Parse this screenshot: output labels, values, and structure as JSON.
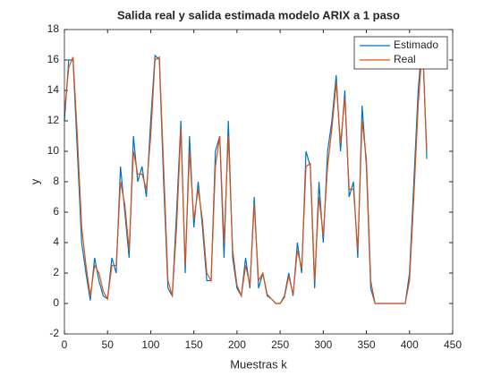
{
  "chart_data": {
    "type": "line",
    "title": "Salida real y salida estimada modelo ARIX a 1 paso",
    "x_label": "Muestras k",
    "y_label": "y",
    "x": [
      0,
      5,
      10,
      15,
      20,
      25,
      30,
      35,
      40,
      45,
      50,
      55,
      60,
      65,
      70,
      75,
      80,
      85,
      90,
      95,
      100,
      105,
      110,
      115,
      120,
      125,
      130,
      135,
      140,
      145,
      150,
      155,
      160,
      165,
      170,
      175,
      180,
      185,
      190,
      195,
      200,
      205,
      210,
      215,
      220,
      225,
      230,
      235,
      240,
      245,
      250,
      255,
      260,
      265,
      270,
      275,
      280,
      285,
      290,
      295,
      300,
      305,
      310,
      315,
      320,
      325,
      330,
      335,
      340,
      345,
      350,
      355,
      360,
      365,
      370,
      375,
      380,
      385,
      390,
      395,
      400,
      405,
      410,
      415,
      420
    ],
    "series": [
      {
        "name": "Estimado",
        "color": "#0072bd",
        "values": [
          12,
          16,
          16,
          10,
          4,
          2,
          0.2,
          3,
          1.5,
          0.5,
          0.3,
          3,
          2,
          9,
          6,
          3,
          11,
          8,
          9,
          7,
          12,
          16.3,
          16,
          8,
          1,
          0.5,
          6,
          12,
          2,
          11,
          5,
          8,
          5,
          1.5,
          1.5,
          10,
          11,
          3,
          12,
          3,
          1,
          0.5,
          3,
          1,
          7,
          1,
          2,
          0.5,
          0.3,
          0,
          0,
          0.5,
          2,
          0.5,
          4,
          2,
          10,
          9,
          1,
          8,
          4,
          10,
          12,
          15,
          10,
          14,
          7,
          8,
          3,
          13,
          9,
          1,
          0,
          0,
          0,
          0,
          0,
          0,
          0,
          0,
          2,
          8,
          14,
          17.5,
          9.5
        ]
      },
      {
        "name": "Real",
        "color": "#d95319",
        "values": [
          12.5,
          15.5,
          16.2,
          11,
          5,
          2.5,
          0.5,
          2.5,
          2,
          0.8,
          0.3,
          2.5,
          2.5,
          8,
          6.5,
          3.5,
          10,
          8.5,
          8.5,
          7.5,
          11,
          16,
          16.2,
          9,
          1.5,
          0.5,
          5,
          11.5,
          2.5,
          10,
          5.5,
          7.5,
          5.5,
          2,
          1.5,
          9,
          11,
          4,
          11,
          3.5,
          1.2,
          0.5,
          2.5,
          1.2,
          6.5,
          1.5,
          2,
          0.6,
          0.3,
          0,
          0,
          0.4,
          1.8,
          0.6,
          3.5,
          2.3,
          9,
          9.2,
          1.5,
          7,
          4.5,
          9,
          11.5,
          14.5,
          10.5,
          13.5,
          7.5,
          7.5,
          3.5,
          12,
          9.5,
          1.5,
          0,
          0,
          0,
          0,
          0,
          0,
          0,
          0,
          1.5,
          7,
          13,
          17,
          10
        ]
      }
    ],
    "xlim": [
      0,
      450
    ],
    "xticks": [
      0,
      50,
      100,
      150,
      200,
      250,
      300,
      350,
      400,
      450
    ],
    "ylim": [
      -2,
      18
    ],
    "yticks": [
      -2,
      0,
      2,
      4,
      6,
      8,
      10,
      12,
      14,
      16,
      18
    ],
    "legend": "northeast"
  }
}
